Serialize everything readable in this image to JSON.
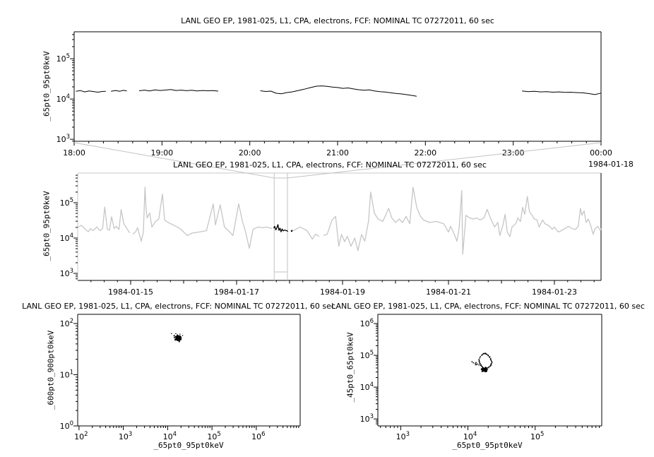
{
  "title_text": "LANL GEO EP, 1981-025, L1, CPA, electrons, FCF: NOMINAL TC 07272011, 60 sec",
  "colors": {
    "series": "#000000",
    "context_series": "#c6c6c6",
    "connector": "#c2c2c2",
    "frame": "#000000",
    "context_frame": "#c8c8c8",
    "background": "#ffffff"
  },
  "chart_data": [
    {
      "id": "zoomed-timeseries",
      "type": "line",
      "title": "LANL GEO EP, 1981-025, L1, CPA, electrons, FCF: NOMINAL TC 07272011, 60 sec",
      "ylabel": "_65pt0_95pt0keV",
      "x_sub_label": "1984-01-18",
      "x_unit": "hour of day ending 1984-01-18 00:00",
      "xlim_hours": [
        18,
        24
      ],
      "ylim_log10": [
        2.95,
        5.67
      ],
      "x_ticks": [
        {
          "v": 18,
          "label": "18:00"
        },
        {
          "v": 19,
          "label": "19:00"
        },
        {
          "v": 20,
          "label": "20:00"
        },
        {
          "v": 21,
          "label": "21:00"
        },
        {
          "v": 22,
          "label": "22:00"
        },
        {
          "v": 23,
          "label": "23:00"
        },
        {
          "v": 24,
          "label": "00:00"
        }
      ],
      "y_tick_exponents": [
        3,
        4,
        5
      ],
      "grid": false,
      "segments": [
        [
          [
            18.02,
            15500
          ],
          [
            18.07,
            16200
          ],
          [
            18.12,
            15000
          ],
          [
            18.17,
            15800
          ],
          [
            18.22,
            15300
          ],
          [
            18.27,
            14800
          ],
          [
            18.32,
            15400
          ],
          [
            18.36,
            15600
          ]
        ],
        [
          [
            18.42,
            15500
          ],
          [
            18.47,
            16300
          ],
          [
            18.52,
            15600
          ],
          [
            18.56,
            16400
          ],
          [
            18.6,
            15800
          ]
        ],
        [
          [
            18.74,
            16000
          ],
          [
            18.8,
            16600
          ],
          [
            18.86,
            15900
          ],
          [
            18.92,
            16800
          ],
          [
            18.98,
            16300
          ],
          [
            19.04,
            16700
          ],
          [
            19.1,
            17200
          ],
          [
            19.16,
            16300
          ],
          [
            19.22,
            16600
          ],
          [
            19.28,
            16100
          ],
          [
            19.34,
            16500
          ],
          [
            19.4,
            15900
          ],
          [
            19.46,
            16300
          ],
          [
            19.52,
            16000
          ],
          [
            19.58,
            16200
          ],
          [
            19.64,
            15700
          ]
        ],
        [
          [
            20.12,
            16000
          ],
          [
            20.18,
            15400
          ],
          [
            20.24,
            15700
          ],
          [
            20.3,
            13900
          ],
          [
            20.36,
            13500
          ],
          [
            20.42,
            14400
          ],
          [
            20.48,
            15000
          ],
          [
            20.55,
            16200
          ],
          [
            20.62,
            17500
          ],
          [
            20.69,
            19200
          ],
          [
            20.76,
            20800
          ],
          [
            20.82,
            21200
          ],
          [
            20.88,
            20600
          ],
          [
            20.94,
            19800
          ],
          [
            21.0,
            19300
          ],
          [
            21.06,
            18400
          ],
          [
            21.12,
            18800
          ],
          [
            21.18,
            17800
          ],
          [
            21.24,
            17000
          ],
          [
            21.3,
            16500
          ],
          [
            21.36,
            16800
          ],
          [
            21.42,
            15800
          ],
          [
            21.48,
            15200
          ],
          [
            21.54,
            14900
          ],
          [
            21.6,
            14300
          ],
          [
            21.66,
            13800
          ],
          [
            21.72,
            13400
          ],
          [
            21.78,
            12900
          ],
          [
            21.84,
            12300
          ],
          [
            21.9,
            11700
          ]
        ],
        [
          [
            23.1,
            15800
          ],
          [
            23.17,
            15200
          ],
          [
            23.24,
            15500
          ],
          [
            23.31,
            15000
          ],
          [
            23.38,
            15200
          ],
          [
            23.45,
            14800
          ],
          [
            23.52,
            15000
          ],
          [
            23.59,
            14600
          ],
          [
            23.66,
            14700
          ],
          [
            23.73,
            14400
          ],
          [
            23.8,
            14200
          ],
          [
            23.87,
            13600
          ],
          [
            23.93,
            12900
          ],
          [
            24.0,
            14000
          ]
        ]
      ]
    },
    {
      "id": "context-overview-timeseries",
      "type": "line",
      "title": "LANL GEO EP, 1981-025, L1, CPA, electrons, FCF: NOMINAL TC 07272011, 60 sec",
      "ylabel": "_65pt0_95pt0keV",
      "x_unit": "days since 1984-01-14 00:00",
      "xlim_days": [
        0,
        9.88
      ],
      "ylim_log10": [
        2.8,
        5.84
      ],
      "x_ticks": [
        {
          "v": 1,
          "label": "1984-01-15"
        },
        {
          "v": 3,
          "label": "1984-01-17"
        },
        {
          "v": 5,
          "label": "1984-01-19"
        },
        {
          "v": 7,
          "label": "1984-01-21"
        },
        {
          "v": 9,
          "label": "1984-01-23"
        }
      ],
      "y_tick_exponents": [
        3,
        4,
        5
      ],
      "zoom_box_days": [
        3.71,
        3.96
      ],
      "gray_segments": [
        [
          [
            0.0,
            20000
          ],
          [
            0.07,
            23000
          ],
          [
            0.13,
            18500
          ],
          [
            0.2,
            15000
          ],
          [
            0.24,
            18500
          ],
          [
            0.29,
            16200
          ],
          [
            0.36,
            20500
          ],
          [
            0.42,
            16200
          ],
          [
            0.47,
            18500
          ],
          [
            0.51,
            75000
          ],
          [
            0.56,
            17500
          ],
          [
            0.6,
            16800
          ],
          [
            0.64,
            40000
          ],
          [
            0.69,
            18500
          ],
          [
            0.73,
            21500
          ],
          [
            0.78,
            17500
          ],
          [
            0.82,
            64000
          ],
          [
            0.87,
            25500
          ],
          [
            0.91,
            20500
          ],
          [
            0.98,
            14000
          ]
        ],
        [
          [
            1.04,
            13000
          ],
          [
            1.09,
            14800
          ],
          [
            1.13,
            19500
          ],
          [
            1.2,
            8100
          ],
          [
            1.24,
            14800
          ],
          [
            1.27,
            275000
          ],
          [
            1.29,
            69000
          ],
          [
            1.31,
            37000
          ],
          [
            1.36,
            51000
          ],
          [
            1.4,
            20500
          ],
          [
            1.47,
            29500
          ],
          [
            1.53,
            34500
          ],
          [
            1.6,
            175000
          ],
          [
            1.64,
            32500
          ],
          [
            1.71,
            27500
          ],
          [
            1.8,
            23500
          ],
          [
            1.93,
            18500
          ],
          [
            2.07,
            11800
          ],
          [
            2.16,
            13800
          ],
          [
            2.29,
            14800
          ],
          [
            2.43,
            16200
          ],
          [
            2.56,
            93000
          ],
          [
            2.6,
            23500
          ],
          [
            2.69,
            87000
          ],
          [
            2.77,
            20500
          ],
          [
            2.87,
            14800
          ],
          [
            2.93,
            11800
          ],
          [
            3.04,
            93000
          ],
          [
            3.11,
            29500
          ],
          [
            3.17,
            14800
          ],
          [
            3.24,
            5100
          ],
          [
            3.31,
            17500
          ],
          [
            3.4,
            20500
          ],
          [
            3.5,
            19500
          ],
          [
            3.57,
            20500
          ],
          [
            3.67,
            18500
          ]
        ],
        [
          [
            4.03,
            17500
          ],
          [
            4.07,
            16200
          ],
          [
            4.2,
            20500
          ],
          [
            4.33,
            16200
          ],
          [
            4.43,
            9300
          ],
          [
            4.49,
            12800
          ],
          [
            4.56,
            11000
          ]
        ],
        [
          [
            4.64,
            11800
          ],
          [
            4.71,
            12800
          ],
          [
            4.8,
            32000
          ],
          [
            4.87,
            41000
          ],
          [
            4.93,
            5900
          ],
          [
            4.98,
            12600
          ],
          [
            5.04,
            7900
          ],
          [
            5.09,
            11200
          ],
          [
            5.16,
            5900
          ],
          [
            5.23,
            10000
          ],
          [
            5.29,
            4400
          ],
          [
            5.36,
            12600
          ],
          [
            5.42,
            8100
          ],
          [
            5.49,
            30000
          ],
          [
            5.53,
            200000
          ],
          [
            5.6,
            51000
          ],
          [
            5.67,
            34500
          ],
          [
            5.76,
            29500
          ],
          [
            5.87,
            69000
          ],
          [
            5.93,
            37000
          ],
          [
            6.0,
            27500
          ],
          [
            6.07,
            34500
          ],
          [
            6.13,
            27500
          ],
          [
            6.2,
            41000
          ],
          [
            6.27,
            25500
          ],
          [
            6.33,
            275000
          ],
          [
            6.4,
            74000
          ],
          [
            6.47,
            41000
          ],
          [
            6.53,
            32500
          ],
          [
            6.64,
            27500
          ],
          [
            6.77,
            29500
          ],
          [
            6.91,
            25500
          ],
          [
            7.0,
            14800
          ],
          [
            7.04,
            21500
          ],
          [
            7.11,
            12800
          ],
          [
            7.16,
            8100
          ],
          [
            7.2,
            18500
          ],
          [
            7.25,
            220000
          ],
          [
            7.27,
            3500
          ],
          [
            7.33,
            44000
          ],
          [
            7.4,
            37000
          ],
          [
            7.47,
            34500
          ],
          [
            7.53,
            37000
          ],
          [
            7.6,
            32500
          ],
          [
            7.67,
            37000
          ],
          [
            7.73,
            65000
          ],
          [
            7.8,
            34500
          ],
          [
            7.87,
            20500
          ],
          [
            7.93,
            27500
          ],
          [
            7.97,
            11800
          ],
          [
            8.03,
            23500
          ],
          [
            8.07,
            47000
          ],
          [
            8.11,
            14800
          ],
          [
            8.16,
            11000
          ],
          [
            8.2,
            20500
          ],
          [
            8.27,
            25500
          ],
          [
            8.31,
            37000
          ],
          [
            8.36,
            29500
          ],
          [
            8.4,
            74000
          ],
          [
            8.44,
            47000
          ],
          [
            8.49,
            150000
          ],
          [
            8.53,
            55000
          ],
          [
            8.58,
            44000
          ],
          [
            8.62,
            34500
          ],
          [
            8.67,
            32500
          ],
          [
            8.71,
            20500
          ],
          [
            8.78,
            32500
          ],
          [
            8.82,
            25500
          ],
          [
            8.87,
            23500
          ],
          [
            8.91,
            21500
          ],
          [
            8.96,
            17500
          ],
          [
            9.0,
            20500
          ],
          [
            9.07,
            14800
          ],
          [
            9.13,
            16200
          ],
          [
            9.2,
            18500
          ],
          [
            9.27,
            21500
          ],
          [
            9.33,
            18500
          ],
          [
            9.4,
            17500
          ],
          [
            9.45,
            21500
          ],
          [
            9.49,
            69000
          ],
          [
            9.52,
            44000
          ],
          [
            9.56,
            59000
          ],
          [
            9.6,
            27500
          ],
          [
            9.64,
            34500
          ],
          [
            9.69,
            21500
          ],
          [
            9.73,
            12800
          ],
          [
            9.77,
            18500
          ],
          [
            9.82,
            21500
          ],
          [
            9.87,
            16200
          ],
          [
            9.88,
            18500
          ]
        ]
      ],
      "highlight_segments": [
        [
          [
            3.7,
            19000
          ],
          [
            3.72,
            21500
          ],
          [
            3.74,
            17000
          ],
          [
            3.76,
            19500
          ],
          [
            3.78,
            24000
          ],
          [
            3.8,
            16500
          ],
          [
            3.82,
            19000
          ],
          [
            3.84,
            15000
          ],
          [
            3.86,
            18000
          ],
          [
            3.88,
            16000
          ],
          [
            3.91,
            16800
          ],
          [
            3.94,
            16200
          ],
          [
            3.97,
            15500
          ]
        ],
        [
          [
            4.04,
            15800
          ]
        ]
      ]
    },
    {
      "id": "scatter-600-900-vs-65-95",
      "type": "scatter",
      "title": "LANL GEO EP, 1981-025, L1, CPA, electrons, FCF: NOMINAL TC 07272011, 60 sec",
      "xlabel": "_65pt0_95pt0keV",
      "ylabel": "_600pt0_900pt0keV",
      "xlim_log10": [
        1.97,
        6.99
      ],
      "ylim_log10": [
        0,
        2.18
      ],
      "x_tick_exponents": [
        2,
        3,
        4,
        5,
        6
      ],
      "y_tick_exponents": [
        0,
        1,
        2
      ],
      "cluster": {
        "center_x": 17200,
        "center_y": 52,
        "n": 120,
        "spread_x_decades": 0.05,
        "spread_y_decades": 0.042,
        "outliers": {
          "n": 18,
          "spread_x_decades": 0.1,
          "spread_y_decades": 0.08
        }
      }
    },
    {
      "id": "scatter-45-65-vs-65-95",
      "type": "scatter",
      "title": "LANL GEO EP, 1981-025, L1, CPA, electrons, FCF: NOMINAL TC 07272011, 60 sec",
      "xlabel": "_65pt0_95pt0keV",
      "ylabel": "_45pt0_65pt0keV",
      "xlim_log10": [
        2.66,
        5.99
      ],
      "ylim_log10": [
        2.78,
        6.29
      ],
      "x_tick_exponents": [
        3,
        4,
        5
      ],
      "y_tick_exponents": [
        3,
        4,
        5,
        6
      ],
      "loop_points": [
        [
          14600,
          74000
        ],
        [
          15800,
          98000
        ],
        [
          17000,
          115000
        ],
        [
          18200,
          117000
        ],
        [
          19500,
          107000
        ],
        [
          20900,
          91000
        ],
        [
          22100,
          74000
        ],
        [
          22600,
          60000
        ],
        [
          22100,
          50000
        ],
        [
          20900,
          43700
        ],
        [
          19500,
          39800
        ],
        [
          18200,
          38000
        ],
        [
          17000,
          39800
        ],
        [
          16200,
          43700
        ],
        [
          15500,
          50000
        ],
        [
          15000,
          60000
        ]
      ],
      "tail_points": [
        [
          14500,
          50000
        ],
        [
          13800,
          53700
        ],
        [
          13200,
          58900
        ],
        [
          12700,
          55000
        ],
        [
          12200,
          58900
        ],
        [
          11600,
          63000
        ],
        [
          13500,
          51300
        ],
        [
          12900,
          50000
        ]
      ],
      "blob": {
        "center_x": 17600,
        "center_y": 35500,
        "n": 55,
        "spread_x_decades": 0.035,
        "spread_y_decades": 0.05
      }
    }
  ]
}
